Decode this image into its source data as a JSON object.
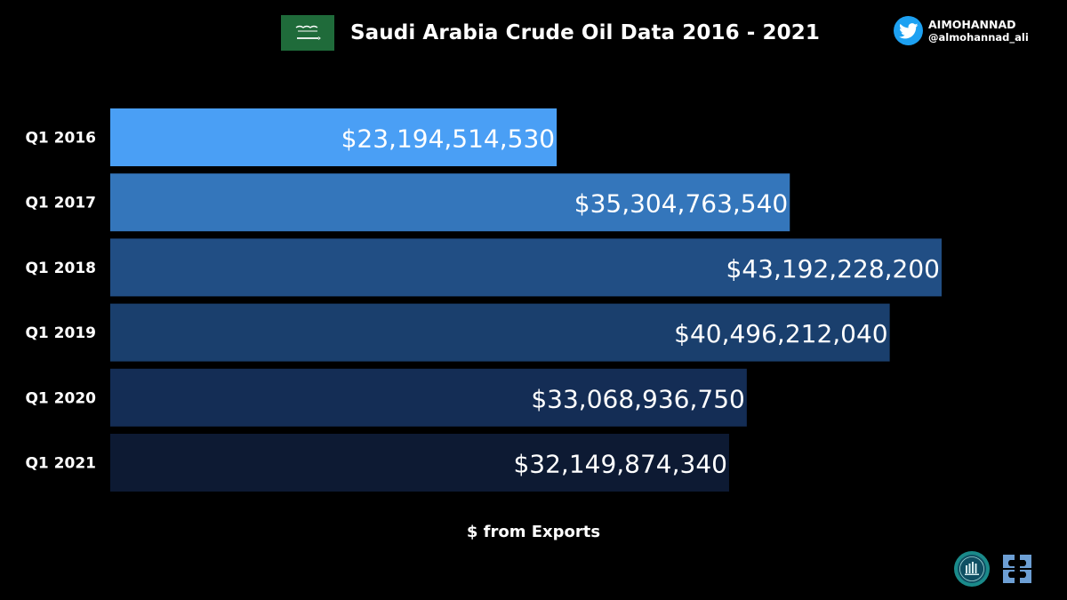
{
  "header": {
    "title": "Saudi Arabia Crude Oil Data 2016 - 2021",
    "flag_icon": "saudi-arabia-flag-icon",
    "flag_color": "#1f6b3a"
  },
  "social": {
    "icon": "twitter-bird-icon",
    "name": "AIMOHANNAD",
    "handle": "@almohannad_ali",
    "color": "#1da1f2"
  },
  "logos": [
    {
      "icon": "ministry-seal-logo-icon",
      "color": "#1a8a8a"
    },
    {
      "icon": "opec-logo-icon",
      "color": "#6d9fd4"
    }
  ],
  "chart_data": {
    "type": "bar",
    "orientation": "horizontal",
    "categories": [
      "Q1 2016",
      "Q1 2017",
      "Q1 2018",
      "Q1 2019",
      "Q1 2020",
      "Q1 2021"
    ],
    "values": [
      23194514530,
      35304763540,
      43192228200,
      40496212040,
      33068936750,
      32149874340
    ],
    "value_labels": [
      "$23,194,514,530",
      "$35,304,763,540",
      "$43,192,228,200",
      "$40,496,212,040",
      "$33,068,936,750",
      "$32,149,874,340"
    ],
    "bar_colors": [
      "#4a9ff5",
      "#3476bb",
      "#214e84",
      "#1a3f6d",
      "#142d55",
      "#0d1a33"
    ],
    "xlabel": "$ from Exports",
    "ylabel": "",
    "xlim": [
      0,
      43192228200
    ],
    "grid": false,
    "legend": "none"
  }
}
